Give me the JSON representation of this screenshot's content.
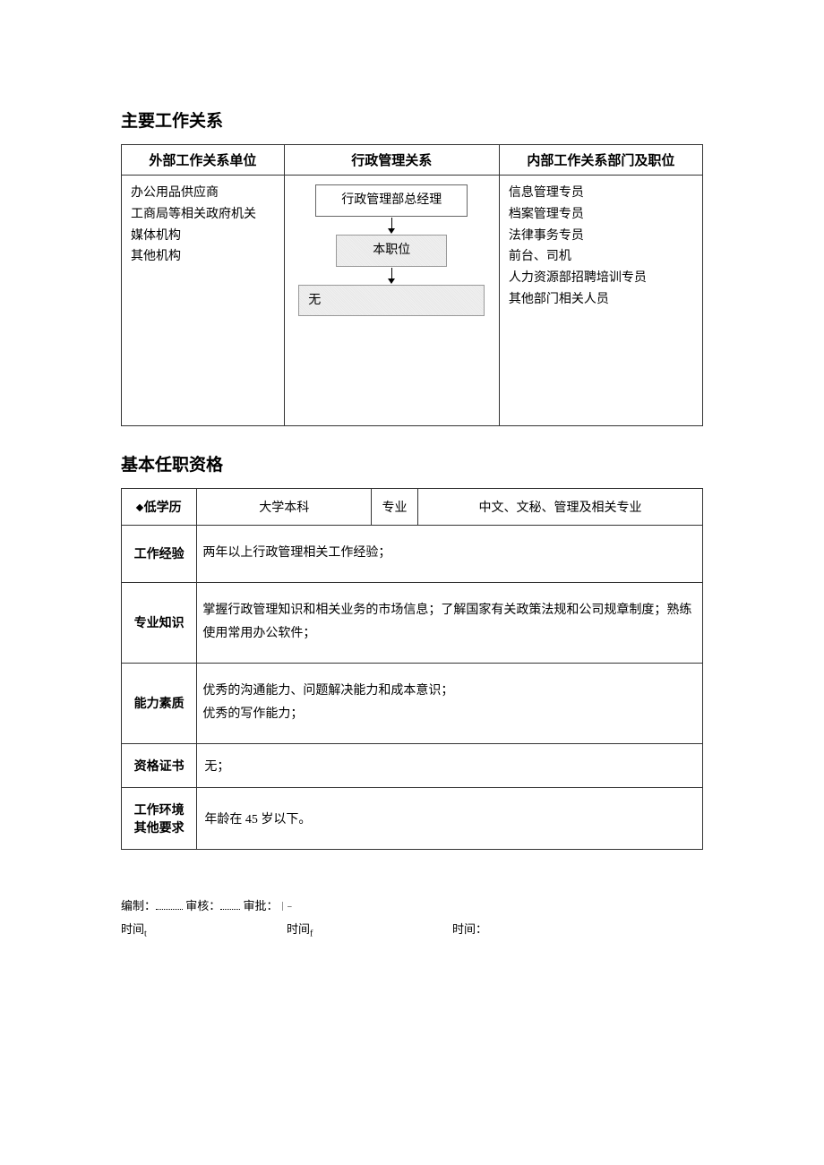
{
  "section1": {
    "title": "主要工作关系",
    "headers": [
      "外部工作关系单位",
      "行政管理关系",
      "内部工作关系部门及职位"
    ],
    "external": [
      "办公用品供应商",
      "工商局等相关政府机关",
      "媒体机构",
      "其他机构"
    ],
    "diagram": {
      "top": "行政管理部总经理",
      "middle": "本职位",
      "bottom": "无"
    },
    "internal": [
      "信息管理专员",
      "档案管理专员",
      "法律事务专员",
      "前台、司机",
      "人力资源部招聘培训专员",
      "其他部门相关人员"
    ]
  },
  "section2": {
    "title": "基本任职资格",
    "rows": {
      "education": {
        "label": "低学历",
        "degree": "大学本科",
        "major_label": "专业",
        "major": "中文、文秘、管理及相关专业"
      },
      "experience": {
        "label": "工作经验",
        "value": "两年以上行政管理相关工作经验；"
      },
      "knowledge": {
        "label": "专业知识",
        "value": "掌握行政管理知识和相关业务的市场信息；了解国家有关政策法规和公司规章制度；熟练使用常用办公软件；"
      },
      "ability": {
        "label": "能力素质",
        "line1": "优秀的沟通能力、问题解决能力和成本意识；",
        "line2": "优秀的写作能力；"
      },
      "cert": {
        "label": "资格证书",
        "value": "无；"
      },
      "env": {
        "label_line1": "工作环境",
        "label_line2": "其他要求",
        "value": "年龄在 45 岁以下。"
      }
    }
  },
  "signatures": {
    "prepare": "编制：",
    "review": "审核：",
    "approve": "审批：",
    "time": "时间",
    "colon": "："
  }
}
